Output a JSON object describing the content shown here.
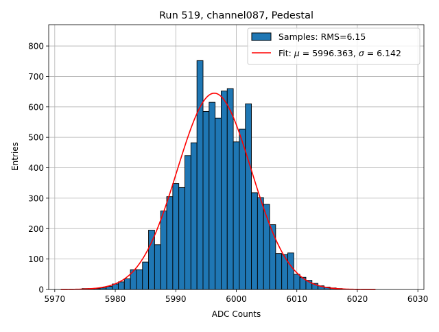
{
  "chart_data": {
    "type": "bar",
    "title": "Run 519, channel087, Pedestal",
    "xlabel": "ADC Counts",
    "ylabel": "Entries",
    "xlim": [
      5969,
      6031
    ],
    "ylim": [
      0,
      870
    ],
    "xticks": [
      5970,
      5980,
      5990,
      6000,
      6010,
      6020,
      6030
    ],
    "yticks": [
      0,
      100,
      200,
      300,
      400,
      500,
      600,
      700,
      800
    ],
    "grid": true,
    "legend_position": "top-right",
    "bin_width": 1,
    "series": [
      {
        "name": "Samples: RMS=6.15",
        "kind": "histogram",
        "color": "#1f77b4",
        "edge_color": "#000000",
        "bins": [
          5975,
          5976,
          5977,
          5978,
          5979,
          5980,
          5981,
          5982,
          5983,
          5984,
          5985,
          5986,
          5987,
          5988,
          5989,
          5990,
          5991,
          5992,
          5993,
          5994,
          5995,
          5996,
          5997,
          5998,
          5999,
          6000,
          6001,
          6002,
          6003,
          6004,
          6005,
          6006,
          6007,
          6008,
          6009,
          6010,
          6011,
          6012,
          6013,
          6014,
          6015,
          6016,
          6017
        ],
        "values": [
          3,
          3,
          3,
          5,
          10,
          18,
          25,
          35,
          65,
          65,
          90,
          195,
          147,
          258,
          305,
          348,
          335,
          440,
          482,
          752,
          585,
          615,
          563,
          652,
          660,
          485,
          527,
          610,
          318,
          302,
          280,
          213,
          118,
          115,
          120,
          50,
          40,
          30,
          20,
          12,
          8,
          5,
          3
        ]
      },
      {
        "name": "Fit: μ = 5996.363, σ = 6.142",
        "kind": "gaussian-fit",
        "color": "#ff0000",
        "mu": 5996.363,
        "sigma": 6.142,
        "amplitude": 645,
        "x_range": [
          5971,
          6023
        ]
      }
    ],
    "legend": {
      "samples_label": "Samples: RMS=6.15",
      "fit_prefix": "Fit: ",
      "fit_mu_symbol": "μ",
      "fit_mu_value": " = 5996.363, ",
      "fit_sigma_symbol": "σ",
      "fit_sigma_value": " = 6.142"
    }
  }
}
